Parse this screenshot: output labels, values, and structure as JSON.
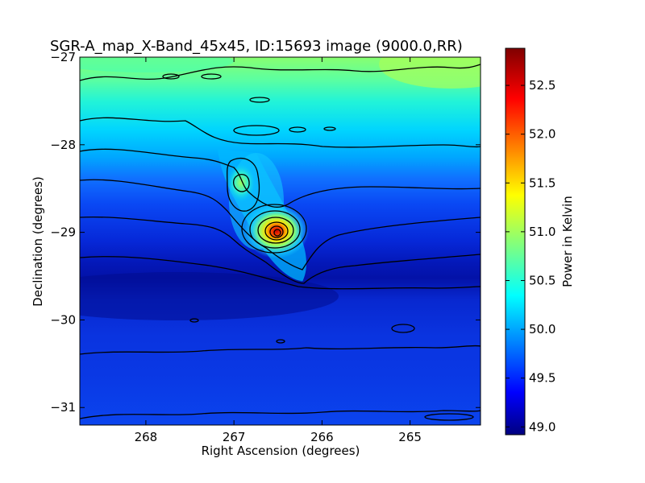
{
  "chart_data": {
    "type": "heatmap",
    "title": "SGR-A_map_X-Band_45x45, ID:15693 image (9000.0,RR)",
    "xlabel": "Right Ascension (degrees)",
    "ylabel": "Declination (degrees)",
    "xlim": [
      268.75,
      264.2
    ],
    "ylim": [
      -31.2,
      -27.0
    ],
    "x_ticks": [
      268,
      267,
      266,
      265
    ],
    "x_tick_labels": [
      "268",
      "267",
      "266",
      "265"
    ],
    "y_ticks": [
      -27,
      -28,
      -29,
      -30,
      -31
    ],
    "y_tick_labels": [
      "−27",
      "−28",
      "−29",
      "−30",
      "−31"
    ],
    "colorbar": {
      "label": "Power in Kelvin",
      "range": [
        48.92,
        52.88
      ],
      "ticks": [
        49.0,
        49.5,
        50.0,
        50.5,
        51.0,
        51.5,
        52.0,
        52.5
      ],
      "tick_labels": [
        "49.0",
        "49.5",
        "50.0",
        "50.5",
        "51.0",
        "51.5",
        "52.0",
        "52.5"
      ],
      "colormap": "jet"
    },
    "peak_source": {
      "ra": 266.43,
      "dec": -29.01,
      "value": 52.88
    },
    "secondary_source": {
      "ra": 266.87,
      "dec": -28.43,
      "value": 50.7
    },
    "contours": true
  }
}
